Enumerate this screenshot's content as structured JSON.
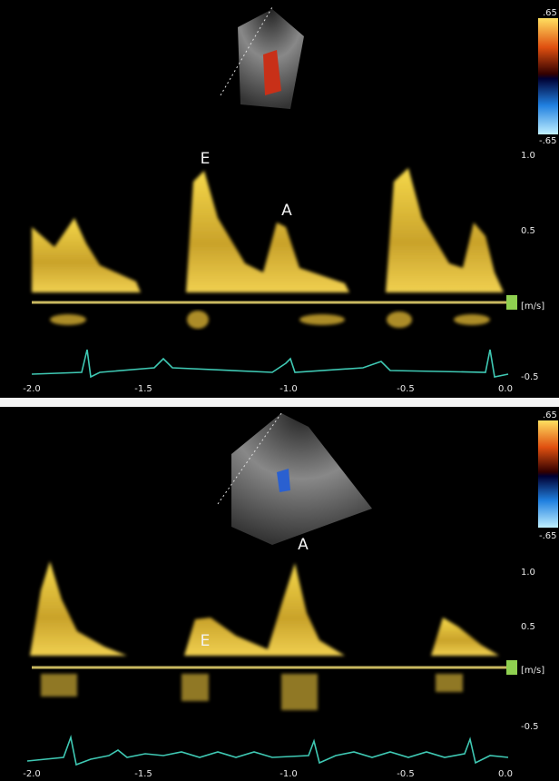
{
  "panels": [
    {
      "label_e": "E",
      "label_a": "A",
      "color_scale": {
        "top": ".65",
        "bottom": "-.65"
      },
      "velocity_scale": [
        "1.0",
        "0.5",
        "[m/s]",
        "-0.5"
      ],
      "time_axis": [
        "-2.0",
        "-1.5",
        "-1.0",
        "-0.5",
        "0.0"
      ]
    },
    {
      "label_e": "E",
      "label_a": "A",
      "color_scale": {
        "top": ".65",
        "bottom": "-.65"
      },
      "velocity_scale": [
        "1.0",
        "0.5",
        "[m/s]",
        "-0.5"
      ],
      "time_axis": [
        "-2.0",
        "-1.5",
        "-1.0",
        "-0.5",
        "0.0"
      ]
    }
  ]
}
